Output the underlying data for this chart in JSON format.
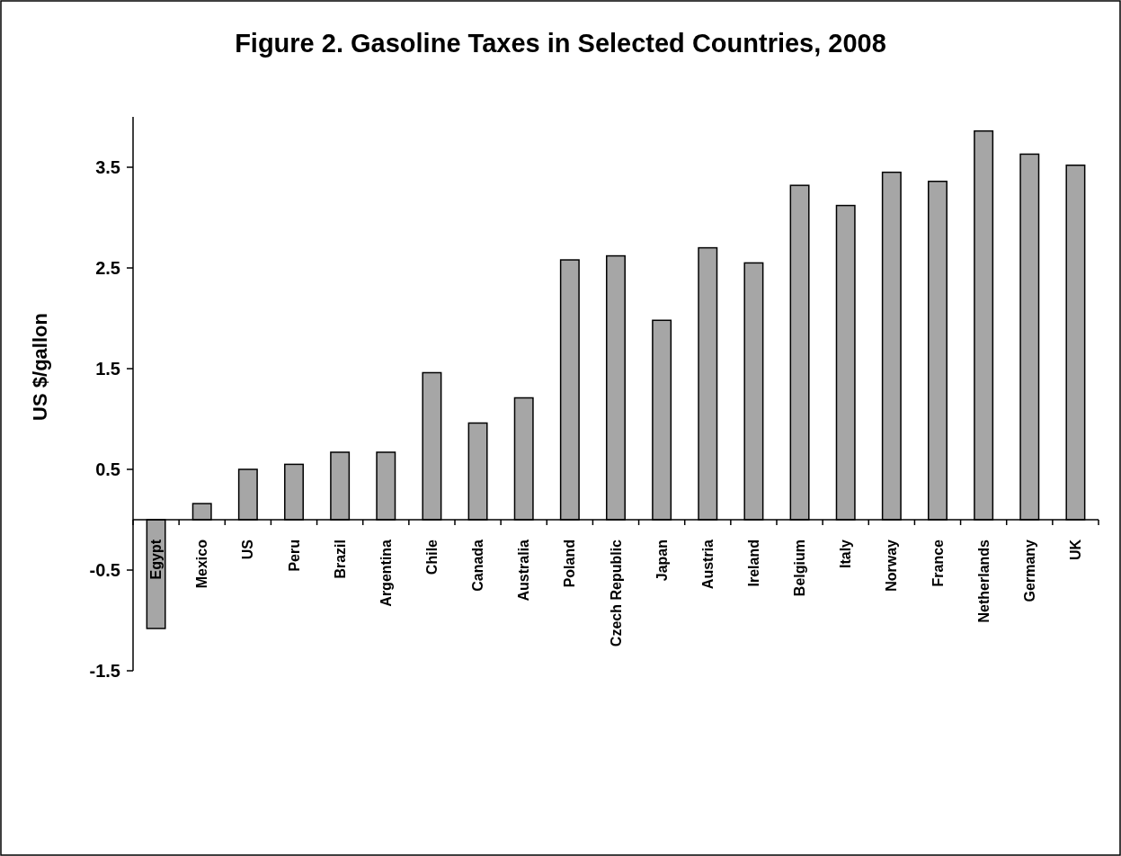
{
  "chart_data": {
    "type": "bar",
    "title": "Figure 2. Gasoline Taxes in Selected Countries, 2008",
    "ylabel": "US $/gallon",
    "categories": [
      "Egypt",
      "Mexico",
      "US",
      "Peru",
      "Brazil",
      "Argentina",
      "Chile",
      "Canada",
      "Australia",
      "Poland",
      "Czech Republic",
      "Japan",
      "Austria",
      "Ireland",
      "Belgium",
      "Italy",
      "Norway",
      "France",
      "Netherlands",
      "Germany",
      "UK"
    ],
    "values": [
      -1.08,
      0.16,
      0.5,
      0.55,
      0.67,
      0.67,
      1.46,
      0.96,
      1.21,
      2.58,
      2.62,
      1.98,
      2.7,
      2.55,
      3.32,
      3.12,
      3.45,
      3.36,
      3.86,
      3.63,
      3.52
    ],
    "color": "#a6a6a6",
    "ylim": [
      -1.5,
      4
    ],
    "yticks": [
      -1.5,
      -0.5,
      0.5,
      1.5,
      2.5,
      3.5
    ],
    "grid": false
  }
}
